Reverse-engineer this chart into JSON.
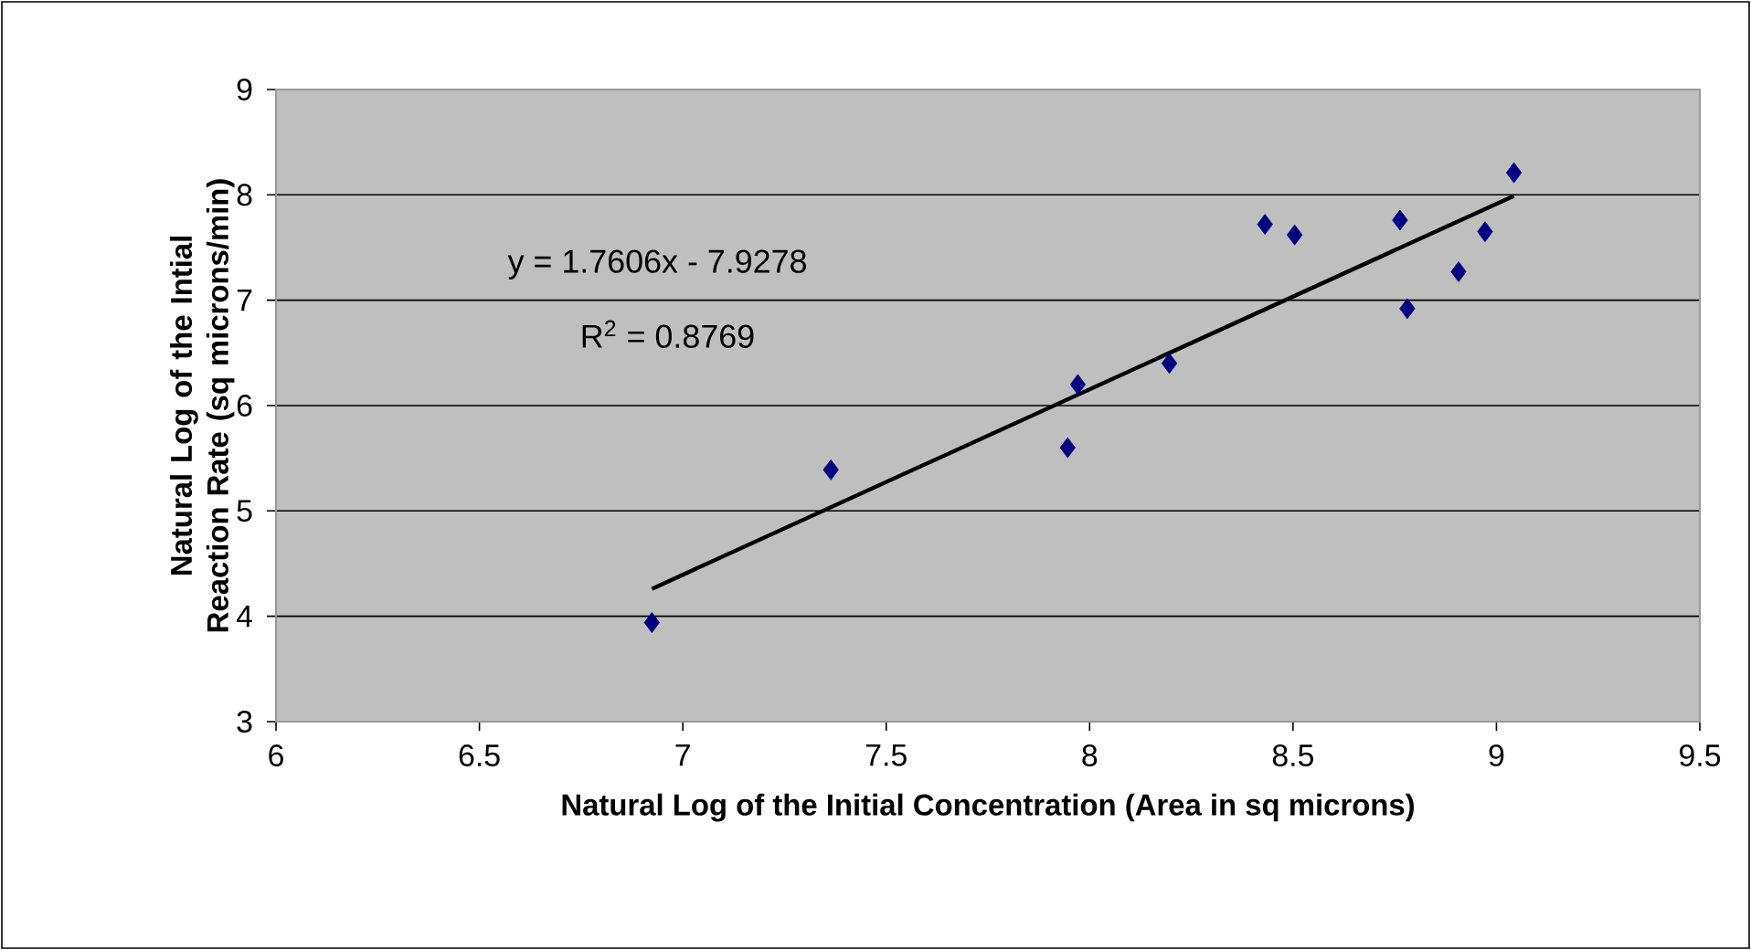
{
  "chart_data": {
    "type": "scatter",
    "xlabel": "Natural Log of the Initial Concentration (Area in sq microns)",
    "ylabel": "Natural Log of the Intial Reaction Rate (sq microns/min)",
    "series": [
      {
        "color": "#000080",
        "marker": "diamond",
        "x": [
          6.924,
          7.364,
          7.946,
          7.971,
          8.196,
          8.431,
          8.504,
          8.763,
          8.781,
          8.907,
          8.972,
          9.043
        ],
        "values": [
          3.94,
          5.39,
          5.6,
          6.2,
          6.4,
          7.72,
          7.62,
          7.76,
          6.92,
          7.27,
          7.65,
          8.21
        ]
      },
      {
        "type": "line",
        "color": "#000000",
        "marker": "none",
        "line_style": "solid",
        "x": [
          6.924,
          9.043
        ],
        "values": [
          4.26,
          7.99
        ]
      }
    ],
    "annotations": [
      "y = 1.7606x - 7.9278",
      "R$^{2}$ = 0.8769"
    ],
    "xlim": [
      6,
      9.5
    ],
    "xticks": [
      6,
      6.5,
      7,
      7.5,
      8,
      8.5,
      9,
      9.5
    ],
    "ylim": [
      3,
      9
    ],
    "yticks": [
      3,
      4,
      5,
      6,
      7,
      8,
      9
    ],
    "grid": "y"
  }
}
